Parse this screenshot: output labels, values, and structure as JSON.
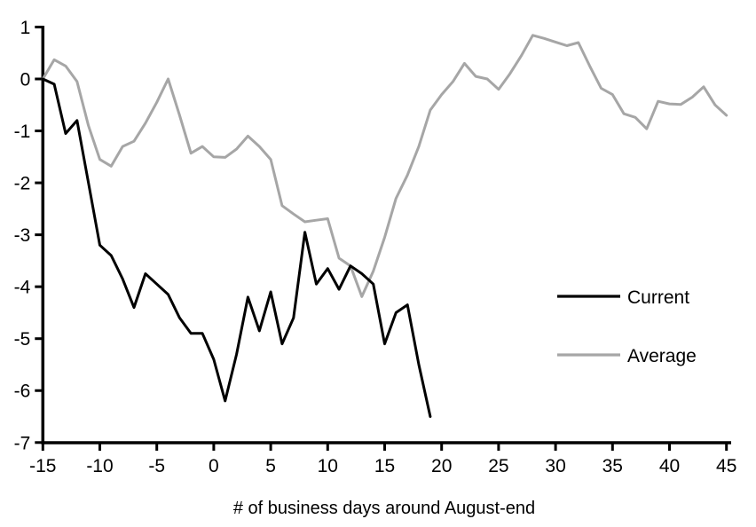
{
  "chart_data": {
    "type": "line",
    "xlabel": "# of business days around August-end",
    "xlim": [
      -15,
      45
    ],
    "ylim": [
      -7,
      1
    ],
    "xticks": [
      -15,
      -10,
      -5,
      0,
      5,
      10,
      15,
      20,
      25,
      30,
      35,
      40,
      45
    ],
    "yticks": [
      1,
      0,
      -1,
      -2,
      -3,
      -4,
      -5,
      -6,
      -7
    ],
    "grid": false,
    "legend_position": "right-middle",
    "x_start": -15,
    "series": [
      {
        "name": "Current",
        "color": "#000000",
        "values": [
          0,
          -0.1,
          -1.05,
          -0.8,
          -2.0,
          -3.2,
          -3.4,
          -3.85,
          -4.4,
          -3.75,
          -3.95,
          -4.15,
          -4.6,
          -4.9,
          -4.9,
          -5.4,
          -6.2,
          -5.3,
          -4.2,
          -4.85,
          -4.1,
          -5.1,
          -4.6,
          -2.95,
          -3.95,
          -3.65,
          -4.05,
          -3.6,
          -3.75,
          -3.95,
          -5.1,
          -4.5,
          -4.35,
          -5.5,
          -6.5
        ]
      },
      {
        "name": "Average",
        "color": "#a6a6a6",
        "values": [
          0,
          0.37,
          0.25,
          -0.05,
          -0.9,
          -1.55,
          -1.68,
          -1.3,
          -1.2,
          -0.85,
          -0.45,
          0.0,
          -0.7,
          -1.43,
          -1.3,
          -1.5,
          -1.51,
          -1.35,
          -1.1,
          -1.3,
          -1.55,
          -2.44,
          -2.6,
          -2.75,
          -2.72,
          -2.69,
          -3.45,
          -3.6,
          -4.19,
          -3.7,
          -3.05,
          -2.3,
          -1.85,
          -1.3,
          -0.6,
          -0.3,
          -0.05,
          0.3,
          0.05,
          0.0,
          -0.2,
          0.1,
          0.45,
          0.84,
          0.78,
          0.71,
          0.64,
          0.7,
          0.25,
          -0.18,
          -0.3,
          -0.67,
          -0.74,
          -0.96,
          -0.43,
          -0.48,
          -0.49,
          -0.35,
          -0.15,
          -0.5,
          -0.7
        ]
      }
    ]
  },
  "legend": {
    "items": [
      {
        "label": "Current"
      },
      {
        "label": "Average"
      }
    ]
  }
}
